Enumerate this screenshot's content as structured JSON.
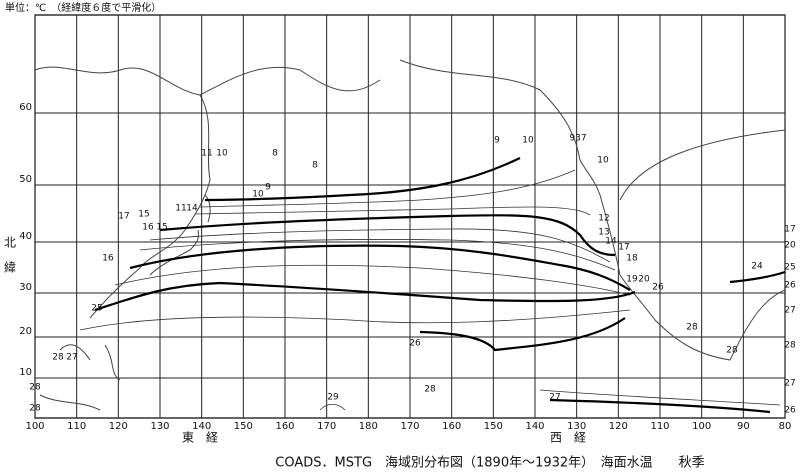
{
  "header": {
    "unit": "単位：℃　（経緯度６度で平滑化）"
  },
  "axes": {
    "lat_labels": [
      60,
      50,
      40,
      30,
      20,
      10
    ],
    "lon_labels": [
      100,
      110,
      120,
      130,
      140,
      150,
      160,
      170,
      180,
      170,
      160,
      150,
      140,
      130,
      120,
      110,
      100,
      90,
      80
    ],
    "north_lat": [
      "北",
      "緯"
    ],
    "east_lon": "東　経",
    "west_lon": "西　経"
  },
  "contour_labels": [
    9,
    10,
    937,
    10,
    8,
    8,
    11,
    10,
    9,
    10,
    11,
    14,
    17,
    15,
    16,
    15,
    16,
    25,
    28,
    27,
    28,
    28,
    26,
    29,
    28,
    12,
    13,
    14,
    17,
    18,
    19,
    20,
    26,
    28,
    28,
    27,
    24,
    17,
    20,
    25,
    26,
    27,
    28,
    27,
    26
  ],
  "caption": "COADS．MSTG　海域別分布図（1890年～1932年）　海面水温　　秋季"
}
